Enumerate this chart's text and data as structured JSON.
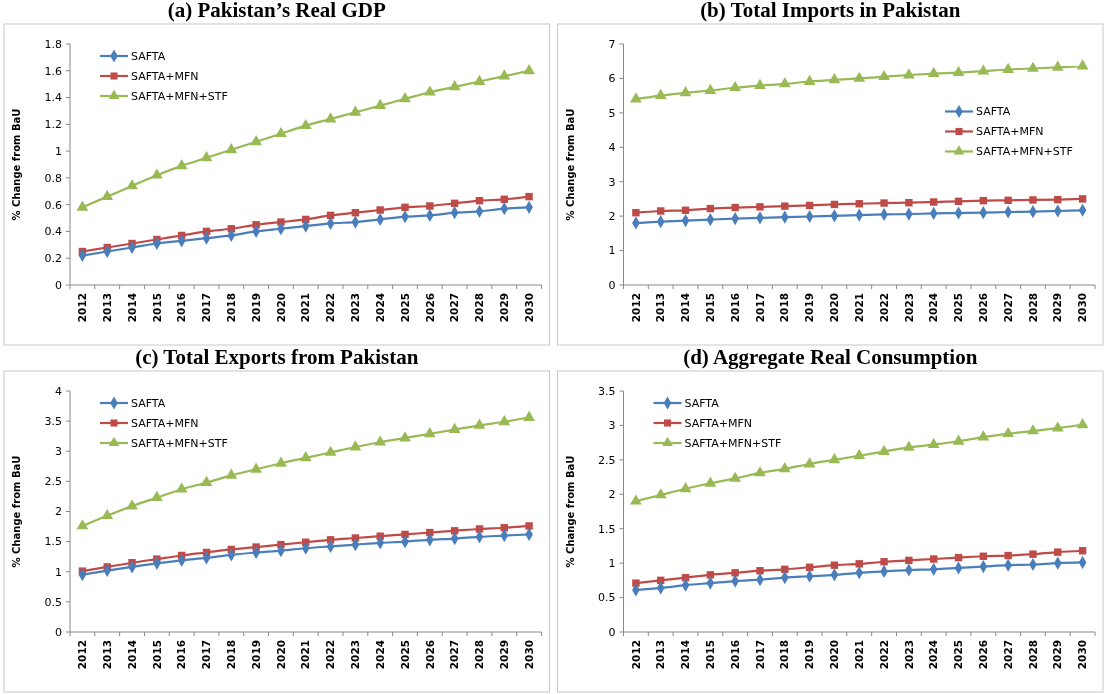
{
  "chart_data": [
    {
      "type": "line",
      "title": "(a) Pakistan’s Real GDP",
      "ylabel": "% Change from BaU",
      "categories": [
        "2012",
        "2013",
        "2014",
        "2015",
        "2016",
        "2017",
        "2018",
        "2019",
        "2020",
        "2021",
        "2022",
        "2023",
        "2024",
        "2025",
        "2026",
        "2027",
        "2028",
        "2029",
        "2030"
      ],
      "ylim": [
        0,
        1.8
      ],
      "yticks": [
        0,
        0.2,
        0.4,
        0.6,
        0.8,
        1,
        1.2,
        1.4,
        1.6,
        1.8
      ],
      "grid": false,
      "legend": "top left",
      "series": [
        {
          "name": "SAFTA",
          "color": "#4a7ebb",
          "marker": "diamond",
          "values": [
            0.22,
            0.25,
            0.28,
            0.31,
            0.33,
            0.35,
            0.37,
            0.4,
            0.42,
            0.44,
            0.46,
            0.47,
            0.49,
            0.51,
            0.52,
            0.54,
            0.55,
            0.57,
            0.58
          ]
        },
        {
          "name": "SAFTA+MFN",
          "color": "#be4b48",
          "marker": "square",
          "values": [
            0.25,
            0.28,
            0.31,
            0.34,
            0.37,
            0.4,
            0.42,
            0.45,
            0.47,
            0.49,
            0.52,
            0.54,
            0.56,
            0.58,
            0.59,
            0.61,
            0.63,
            0.64,
            0.66
          ]
        },
        {
          "name": "SAFTA+MFN+STF",
          "color": "#98b954",
          "marker": "triangle",
          "values": [
            0.58,
            0.66,
            0.74,
            0.82,
            0.89,
            0.95,
            1.01,
            1.07,
            1.13,
            1.19,
            1.24,
            1.29,
            1.34,
            1.39,
            1.44,
            1.48,
            1.52,
            1.56,
            1.6
          ]
        }
      ]
    },
    {
      "type": "line",
      "title": "(b) Total Imports in Pakistan",
      "ylabel": "% Change from BaU",
      "categories": [
        "2012",
        "2013",
        "2014",
        "2015",
        "2016",
        "2017",
        "2018",
        "2019",
        "2020",
        "2021",
        "2022",
        "2023",
        "2024",
        "2025",
        "2026",
        "2027",
        "2028",
        "2029",
        "2030"
      ],
      "ylim": [
        0,
        7
      ],
      "yticks": [
        0,
        1,
        2,
        3,
        4,
        5,
        6,
        7
      ],
      "grid": false,
      "legend": "right",
      "series": [
        {
          "name": "SAFTA",
          "color": "#4a7ebb",
          "marker": "diamond",
          "values": [
            1.8,
            1.84,
            1.87,
            1.9,
            1.93,
            1.95,
            1.97,
            1.99,
            2.01,
            2.03,
            2.05,
            2.06,
            2.08,
            2.09,
            2.1,
            2.12,
            2.13,
            2.15,
            2.17
          ]
        },
        {
          "name": "SAFTA+MFN",
          "color": "#be4b48",
          "marker": "square",
          "values": [
            2.1,
            2.15,
            2.17,
            2.22,
            2.25,
            2.27,
            2.29,
            2.31,
            2.34,
            2.36,
            2.38,
            2.39,
            2.41,
            2.43,
            2.45,
            2.46,
            2.47,
            2.48,
            2.5
          ]
        },
        {
          "name": "SAFTA+MFN+STF",
          "color": "#98b954",
          "marker": "triangle",
          "values": [
            5.4,
            5.5,
            5.58,
            5.65,
            5.73,
            5.79,
            5.84,
            5.91,
            5.96,
            6.0,
            6.05,
            6.1,
            6.14,
            6.17,
            6.21,
            6.26,
            6.29,
            6.32,
            6.36
          ]
        }
      ]
    },
    {
      "type": "line",
      "title": "(c) Total Exports from Pakistan",
      "ylabel": "% Change from BaU",
      "categories": [
        "2012",
        "2013",
        "2014",
        "2015",
        "2016",
        "2017",
        "2018",
        "2019",
        "2020",
        "2021",
        "2022",
        "2023",
        "2024",
        "2025",
        "2026",
        "2027",
        "2028",
        "2029",
        "2030"
      ],
      "ylim": [
        0,
        4
      ],
      "yticks": [
        0,
        0.5,
        1,
        1.5,
        2,
        2.5,
        3,
        3.5,
        4
      ],
      "grid": false,
      "legend": "top left",
      "series": [
        {
          "name": "SAFTA",
          "color": "#4a7ebb",
          "marker": "diamond",
          "values": [
            0.95,
            1.02,
            1.08,
            1.14,
            1.19,
            1.23,
            1.28,
            1.32,
            1.35,
            1.39,
            1.42,
            1.45,
            1.48,
            1.5,
            1.53,
            1.55,
            1.58,
            1.6,
            1.62
          ]
        },
        {
          "name": "SAFTA+MFN",
          "color": "#be4b48",
          "marker": "square",
          "values": [
            1.01,
            1.08,
            1.15,
            1.21,
            1.27,
            1.32,
            1.37,
            1.41,
            1.45,
            1.49,
            1.53,
            1.56,
            1.59,
            1.62,
            1.65,
            1.68,
            1.71,
            1.73,
            1.76
          ]
        },
        {
          "name": "SAFTA+MFN+STF",
          "color": "#98b954",
          "marker": "triangle",
          "values": [
            1.76,
            1.93,
            2.09,
            2.23,
            2.37,
            2.48,
            2.6,
            2.7,
            2.8,
            2.89,
            2.98,
            3.07,
            3.15,
            3.22,
            3.29,
            3.36,
            3.43,
            3.49,
            3.56
          ]
        }
      ]
    },
    {
      "type": "line",
      "title": "(d) Aggregate Real Consumption",
      "ylabel": "% Change from BaU",
      "categories": [
        "2012",
        "2013",
        "2014",
        "2015",
        "2016",
        "2017",
        "2018",
        "2019",
        "2020",
        "2021",
        "2022",
        "2023",
        "2024",
        "2025",
        "2026",
        "2027",
        "2028",
        "2029",
        "2030"
      ],
      "ylim": [
        0,
        3.5
      ],
      "yticks": [
        0,
        0.5,
        1,
        1.5,
        2,
        2.5,
        3,
        3.5
      ],
      "grid": false,
      "legend": "top left",
      "series": [
        {
          "name": "SAFTA",
          "color": "#4a7ebb",
          "marker": "diamond",
          "values": [
            0.61,
            0.64,
            0.68,
            0.71,
            0.74,
            0.76,
            0.79,
            0.81,
            0.83,
            0.86,
            0.88,
            0.9,
            0.91,
            0.93,
            0.95,
            0.97,
            0.98,
            1.0,
            1.01
          ]
        },
        {
          "name": "SAFTA+MFN",
          "color": "#be4b48",
          "marker": "square",
          "values": [
            0.71,
            0.75,
            0.79,
            0.83,
            0.86,
            0.89,
            0.91,
            0.94,
            0.97,
            0.99,
            1.02,
            1.04,
            1.06,
            1.08,
            1.1,
            1.11,
            1.13,
            1.16,
            1.18
          ]
        },
        {
          "name": "SAFTA+MFN+STF",
          "color": "#98b954",
          "marker": "triangle",
          "values": [
            1.9,
            1.99,
            2.08,
            2.16,
            2.23,
            2.31,
            2.37,
            2.44,
            2.5,
            2.56,
            2.62,
            2.68,
            2.72,
            2.77,
            2.83,
            2.88,
            2.92,
            2.96,
            3.01
          ]
        }
      ]
    }
  ]
}
